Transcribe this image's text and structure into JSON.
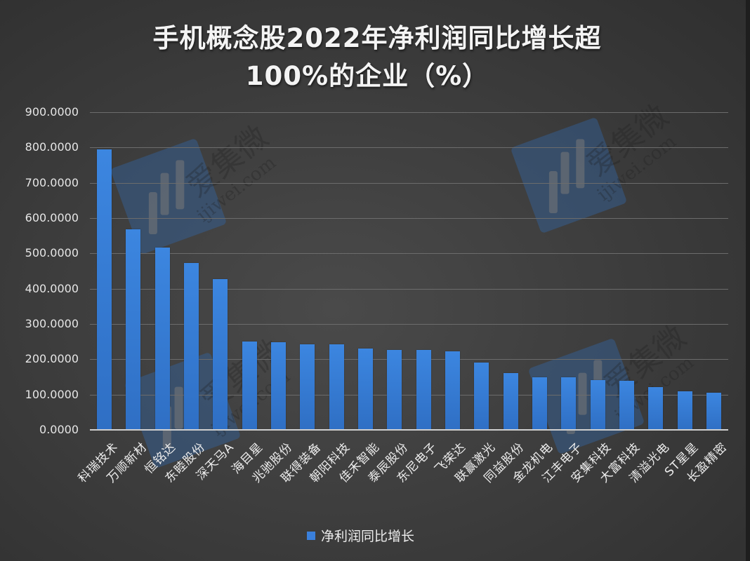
{
  "chart_data": {
    "type": "bar",
    "title": "手机概念股2022年净利润同比增长超100%的企业（%）",
    "title_lines": [
      "手机概念股2022年净利润同比增长超",
      "100%的企业（%）"
    ],
    "xlabel": "",
    "ylabel": "",
    "ylim": [
      0,
      900
    ],
    "yticks": [
      "0.0000",
      "100.0000",
      "200.0000",
      "300.0000",
      "400.0000",
      "500.0000",
      "600.0000",
      "700.0000",
      "800.0000",
      "900.0000"
    ],
    "grid": true,
    "legend_position": "bottom",
    "categories": [
      "科瑞技术",
      "万顺新材",
      "恒铭达",
      "东睦股份",
      "深天马A",
      "海目星",
      "兆驰股份",
      "联得装备",
      "朝阳科技",
      "佳禾智能",
      "泰辰股份",
      "东尼电子",
      "飞荣达",
      "联赢激光",
      "同益股份",
      "金龙机电",
      "江丰电子",
      "安集科技",
      "大富科技",
      "清溢光电",
      "ST星星",
      "长盈精密"
    ],
    "series": [
      {
        "name": "净利润同比增长",
        "color": "#3a80dc",
        "values": [
          795,
          568,
          516,
          472,
          428,
          250,
          248,
          242,
          242,
          230,
          226,
          226,
          222,
          190,
          160,
          150,
          150,
          142,
          140,
          122,
          110,
          106
        ]
      }
    ]
  },
  "watermark": {
    "text": "爱集微",
    "url": "ijiwei.com"
  },
  "colors": {
    "bar": "#3a80dc",
    "background": "#3e3e3e",
    "grid": "#6c6c6c",
    "text": "#ececec"
  }
}
